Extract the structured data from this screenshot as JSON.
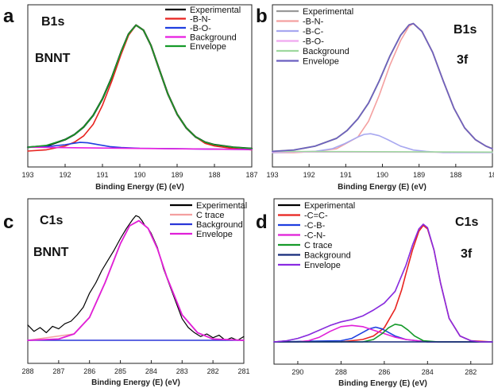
{
  "chart_data": [
    {
      "type": "line",
      "panel_label": "a",
      "annotations": [
        "B1s",
        "BNNT"
      ],
      "xlabel": "Binding Energy (E) (eV)",
      "ylabel": "",
      "xlim": [
        193,
        187
      ],
      "x_ticks": [
        "193",
        "192",
        "191",
        "190",
        "189",
        "188",
        "187"
      ],
      "legend": "top-right",
      "series": [
        {
          "name": "Experimental",
          "color": "#000000",
          "width": 2.2,
          "x": [
            193,
            192.5,
            192,
            191.75,
            191.5,
            191.25,
            191,
            190.75,
            190.5,
            190.3,
            190.1,
            189.9,
            189.7,
            189.5,
            189.25,
            189,
            188.75,
            188.5,
            188.25,
            188,
            187.5,
            187
          ],
          "y": [
            0.03,
            0.04,
            0.09,
            0.13,
            0.19,
            0.28,
            0.41,
            0.58,
            0.78,
            0.92,
            0.99,
            0.95,
            0.83,
            0.66,
            0.45,
            0.29,
            0.18,
            0.11,
            0.07,
            0.05,
            0.03,
            0.02
          ]
        },
        {
          "name": "-B-N-",
          "color": "#e8231f",
          "width": 1.6,
          "x": [
            193,
            192.5,
            192,
            191.75,
            191.5,
            191.25,
            191,
            190.75,
            190.5,
            190.3,
            190.1,
            189.9,
            189.7,
            189.5,
            189.25,
            189,
            188.75,
            188.5,
            188.25,
            188,
            187.5,
            187
          ],
          "y": [
            0.0,
            0.01,
            0.04,
            0.07,
            0.12,
            0.21,
            0.36,
            0.55,
            0.76,
            0.91,
            0.99,
            0.95,
            0.83,
            0.66,
            0.45,
            0.29,
            0.18,
            0.11,
            0.06,
            0.04,
            0.02,
            0.01
          ]
        },
        {
          "name": "-B-O-",
          "color": "#1f3fe0",
          "width": 1.6,
          "x": [
            193,
            192.5,
            192,
            191.8,
            191.6,
            191.4,
            191.2,
            191,
            190.8,
            190.5,
            190,
            189,
            188,
            187
          ],
          "y": [
            0.03,
            0.035,
            0.05,
            0.06,
            0.068,
            0.065,
            0.055,
            0.045,
            0.035,
            0.028,
            0.022,
            0.018,
            0.015,
            0.012
          ]
        },
        {
          "name": "Background",
          "color": "#e81ee0",
          "width": 1.6,
          "x": [
            193,
            187
          ],
          "y": [
            0.03,
            0.012
          ]
        },
        {
          "name": "Envelope",
          "color": "#169a2a",
          "width": 1.6,
          "x": [
            193,
            192.5,
            192,
            191.75,
            191.5,
            191.25,
            191,
            190.75,
            190.5,
            190.3,
            190.1,
            189.9,
            189.7,
            189.5,
            189.25,
            189,
            188.75,
            188.5,
            188.25,
            188,
            187.5,
            187
          ],
          "y": [
            0.03,
            0.045,
            0.09,
            0.13,
            0.19,
            0.28,
            0.41,
            0.58,
            0.78,
            0.92,
            0.99,
            0.95,
            0.83,
            0.66,
            0.45,
            0.29,
            0.18,
            0.11,
            0.07,
            0.05,
            0.03,
            0.02
          ]
        }
      ]
    },
    {
      "type": "line",
      "panel_label": "b",
      "annotations": [
        "B1s",
        "3f"
      ],
      "xlabel": "Binding Energy (E) (eV)",
      "ylabel": "",
      "xlim": [
        193,
        187.85
      ],
      "x_ticks": [
        "193",
        "192",
        "191",
        "190",
        "189",
        "188",
        "18"
      ],
      "legend": "top-left",
      "series": [
        {
          "name": "Experimental",
          "color": "#999999",
          "width": 2.0,
          "x": [
            193,
            192.5,
            192,
            191.5,
            191.25,
            191,
            190.75,
            190.5,
            190.25,
            190,
            189.8,
            189.7,
            189.5,
            189.25,
            189,
            188.75,
            188.5,
            188.25,
            188,
            187.85
          ],
          "y": [
            0.01,
            0.02,
            0.05,
            0.11,
            0.17,
            0.26,
            0.38,
            0.55,
            0.74,
            0.9,
            0.98,
            0.99,
            0.93,
            0.77,
            0.55,
            0.34,
            0.19,
            0.1,
            0.05,
            0.03
          ]
        },
        {
          "name": "-B-N-",
          "color": "#f4a0a0",
          "width": 1.6,
          "x": [
            193,
            192.5,
            192,
            191.5,
            191,
            190.75,
            190.5,
            190.25,
            190,
            189.8,
            189.7,
            189.5,
            189.25,
            189,
            188.75,
            188.5,
            188.25,
            188,
            187.85
          ],
          "y": [
            0.0,
            0.0,
            0.01,
            0.03,
            0.12,
            0.24,
            0.44,
            0.67,
            0.86,
            0.97,
            0.99,
            0.93,
            0.77,
            0.55,
            0.34,
            0.19,
            0.1,
            0.05,
            0.03
          ]
        },
        {
          "name": "-B-C-",
          "color": "#a8a8f0",
          "width": 1.6,
          "x": [
            193,
            192,
            191.6,
            191.3,
            191,
            190.85,
            190.7,
            190.5,
            190.3,
            190,
            189.7,
            189.4,
            189,
            188,
            187.85
          ],
          "y": [
            0.0,
            0.01,
            0.03,
            0.07,
            0.12,
            0.14,
            0.145,
            0.13,
            0.1,
            0.05,
            0.02,
            0.01,
            0.0,
            0.0,
            0.0
          ]
        },
        {
          "name": "-B-O-",
          "color": "#f0a8f0",
          "width": 1.6,
          "x": [
            193,
            187.85
          ],
          "y": [
            0.005,
            0.003
          ]
        },
        {
          "name": "Background",
          "color": "#9ed89e",
          "width": 1.6,
          "x": [
            193,
            187.85
          ],
          "y": [
            0.01,
            0.004
          ]
        },
        {
          "name": "Envelope",
          "color": "#6b5fc0",
          "width": 1.6,
          "x": [
            193,
            192.5,
            192,
            191.5,
            191.25,
            191,
            190.75,
            190.5,
            190.25,
            190,
            189.8,
            189.7,
            189.5,
            189.25,
            189,
            188.75,
            188.5,
            188.25,
            188,
            187.85
          ],
          "y": [
            0.01,
            0.02,
            0.05,
            0.11,
            0.17,
            0.26,
            0.38,
            0.55,
            0.74,
            0.9,
            0.98,
            0.99,
            0.93,
            0.77,
            0.55,
            0.34,
            0.19,
            0.1,
            0.05,
            0.03
          ]
        }
      ]
    },
    {
      "type": "line",
      "panel_label": "c",
      "annotations": [
        "C1s",
        "BNNT"
      ],
      "xlabel": "Binding Energy (E) (eV)",
      "ylabel": "",
      "xlim": [
        288,
        281
      ],
      "x_ticks": [
        "288",
        "287",
        "286",
        "285",
        "284",
        "283",
        "282",
        "281"
      ],
      "legend": "top-right",
      "series": [
        {
          "name": "Experimental",
          "color": "#000000",
          "width": 1.2,
          "x": [
            288,
            287.8,
            287.6,
            287.4,
            287.2,
            287,
            286.8,
            286.6,
            286.4,
            286.2,
            286,
            285.8,
            285.6,
            285.4,
            285.2,
            285,
            284.8,
            284.6,
            284.5,
            284.4,
            284.3,
            284.2,
            284.1,
            284,
            283.8,
            283.6,
            283.4,
            283.2,
            283,
            282.8,
            282.6,
            282.4,
            282.2,
            282,
            281.8,
            281.6,
            281.4,
            281.2,
            281
          ],
          "y": [
            0.12,
            0.07,
            0.1,
            0.06,
            0.11,
            0.09,
            0.13,
            0.15,
            0.2,
            0.26,
            0.37,
            0.45,
            0.55,
            0.63,
            0.71,
            0.8,
            0.88,
            0.95,
            0.98,
            0.97,
            0.94,
            0.9,
            0.88,
            0.84,
            0.73,
            0.56,
            0.43,
            0.3,
            0.17,
            0.1,
            0.06,
            0.03,
            0.05,
            0.02,
            0.04,
            0.0,
            0.02,
            0.0,
            0.03
          ]
        },
        {
          "name": "C trace",
          "color": "#f4a0a0",
          "width": 1.6,
          "x": [
            288,
            286.5,
            286,
            285.5,
            285,
            284.7,
            284.4,
            284.1,
            283.8,
            283.5,
            283,
            282.5,
            282,
            281
          ],
          "y": [
            0.0,
            0.05,
            0.18,
            0.45,
            0.76,
            0.9,
            0.94,
            0.88,
            0.72,
            0.5,
            0.2,
            0.06,
            0.01,
            0.0
          ]
        },
        {
          "name": "Background",
          "color": "#2a36d8",
          "width": 1.6,
          "x": [
            288,
            281
          ],
          "y": [
            0.0,
            0.0
          ]
        },
        {
          "name": "Envelope",
          "color": "#e01fd8",
          "width": 1.8,
          "x": [
            288,
            287,
            286.5,
            286,
            285.5,
            285,
            284.7,
            284.4,
            284.1,
            283.8,
            283.5,
            283,
            282.5,
            282,
            281
          ],
          "y": [
            0.0,
            0.01,
            0.05,
            0.18,
            0.45,
            0.76,
            0.9,
            0.94,
            0.88,
            0.72,
            0.5,
            0.2,
            0.06,
            0.01,
            0.0
          ]
        }
      ]
    },
    {
      "type": "line",
      "panel_label": "d",
      "annotations": [
        "C1s",
        "3f"
      ],
      "xlabel": "Binding Energy (E) (eV)",
      "ylabel": "",
      "xlim": [
        291.1,
        281
      ],
      "x_ticks": [
        "290",
        "288",
        "286",
        "284",
        "282"
      ],
      "legend": "top-left",
      "series": [
        {
          "name": "Experimental",
          "color": "#000000",
          "width": 1.2,
          "x": [
            291.1,
            290.5,
            290,
            289.5,
            289,
            288.5,
            288,
            287.5,
            287,
            286.5,
            286,
            285.5,
            285,
            284.7,
            284.4,
            284.2,
            284,
            283.7,
            283.4,
            283,
            282.5,
            282,
            281.5,
            281
          ],
          "y": [
            0.0,
            0.01,
            0.03,
            0.06,
            0.1,
            0.14,
            0.17,
            0.19,
            0.22,
            0.27,
            0.33,
            0.43,
            0.65,
            0.82,
            0.96,
            1.0,
            0.97,
            0.78,
            0.5,
            0.2,
            0.05,
            0.01,
            0.0,
            0.0
          ]
        },
        {
          "name": "-C=C-",
          "color": "#e8231f",
          "width": 1.6,
          "x": [
            288,
            287,
            286.5,
            286,
            285.5,
            285.2,
            285,
            284.7,
            284.4,
            284.2,
            284,
            283.7,
            283.4,
            283,
            282.5,
            282,
            281
          ],
          "y": [
            0.0,
            0.02,
            0.05,
            0.12,
            0.28,
            0.44,
            0.58,
            0.78,
            0.94,
            0.99,
            0.96,
            0.78,
            0.5,
            0.2,
            0.05,
            0.01,
            0.0
          ]
        },
        {
          "name": "-C-B-",
          "color": "#1f3fe0",
          "width": 1.6,
          "x": [
            291.1,
            288,
            287.5,
            287,
            286.7,
            286.4,
            286.1,
            285.8,
            285.5,
            285,
            284,
            281
          ],
          "y": [
            0.0,
            0.01,
            0.03,
            0.08,
            0.11,
            0.125,
            0.11,
            0.08,
            0.05,
            0.02,
            0.0,
            0.0
          ]
        },
        {
          "name": "-C-N-",
          "color": "#e01fd8",
          "width": 1.6,
          "x": [
            291.1,
            290,
            289.5,
            289,
            288.5,
            288,
            287.5,
            287,
            286.5,
            286,
            285.5,
            285,
            284.5,
            284,
            283,
            281
          ],
          "y": [
            0.0,
            0.0,
            0.01,
            0.04,
            0.09,
            0.13,
            0.14,
            0.13,
            0.1,
            0.07,
            0.04,
            0.02,
            0.01,
            0.0,
            0.0,
            0.0
          ]
        },
        {
          "name": "C trace",
          "color": "#169a2a",
          "width": 1.6,
          "x": [
            291.1,
            287,
            286.5,
            286.1,
            285.8,
            285.5,
            285.2,
            284.9,
            284.6,
            284.2,
            283.5,
            281
          ],
          "y": [
            0.0,
            0.0,
            0.02,
            0.07,
            0.12,
            0.15,
            0.14,
            0.1,
            0.05,
            0.01,
            0.0,
            0.0
          ]
        },
        {
          "name": "Background",
          "color": "#152a7a",
          "width": 1.6,
          "x": [
            291.1,
            288,
            286,
            285,
            284,
            283,
            281
          ],
          "y": [
            0.0,
            0.0,
            0.0,
            0.0,
            0.0,
            0.0,
            0.0
          ]
        },
        {
          "name": "Envelope",
          "color": "#8a2be2",
          "width": 1.6,
          "x": [
            291.1,
            290.5,
            290,
            289.5,
            289,
            288.5,
            288,
            287.5,
            287,
            286.5,
            286,
            285.5,
            285,
            284.7,
            284.4,
            284.2,
            284,
            283.7,
            283.4,
            283,
            282.5,
            282,
            281.5,
            281
          ],
          "y": [
            0.0,
            0.01,
            0.03,
            0.06,
            0.1,
            0.14,
            0.17,
            0.19,
            0.22,
            0.27,
            0.33,
            0.43,
            0.65,
            0.82,
            0.96,
            1.0,
            0.97,
            0.78,
            0.5,
            0.2,
            0.05,
            0.01,
            0.0,
            0.0
          ]
        }
      ]
    }
  ]
}
